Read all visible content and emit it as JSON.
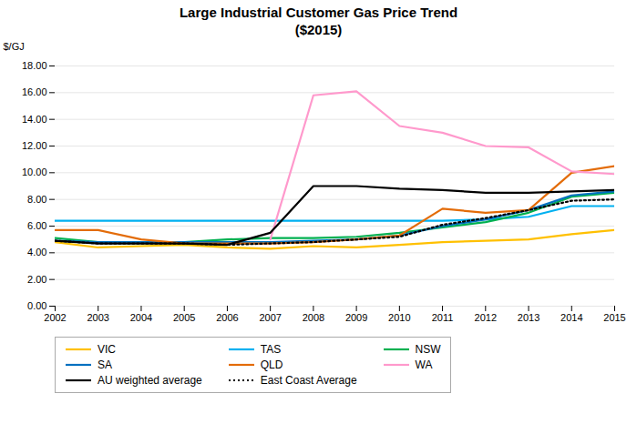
{
  "chart_data": {
    "type": "line",
    "title": "Large Industrial Customer Gas Price Trend\n($2015)",
    "ylabel": "$/GJ",
    "x": [
      2002,
      2003,
      2004,
      2005,
      2006,
      2007,
      2008,
      2009,
      2010,
      2011,
      2012,
      2013,
      2014,
      2015
    ],
    "series": [
      {
        "name": "VIC",
        "color": "#FFC000",
        "line_style": "solid",
        "values": [
          4.8,
          4.4,
          4.5,
          4.6,
          4.4,
          4.3,
          4.5,
          4.4,
          4.6,
          4.8,
          4.9,
          5.0,
          5.4,
          5.7
        ]
      },
      {
        "name": "TAS",
        "color": "#00B0F0",
        "line_style": "solid",
        "values": [
          6.4,
          6.4,
          6.4,
          6.4,
          6.4,
          6.4,
          6.4,
          6.4,
          6.4,
          6.4,
          6.5,
          6.7,
          7.5,
          7.5
        ]
      },
      {
        "name": "NSW",
        "color": "#00B050",
        "line_style": "solid",
        "values": [
          5.1,
          4.8,
          4.8,
          4.8,
          5.0,
          5.1,
          5.1,
          5.2,
          5.5,
          5.9,
          6.3,
          7.0,
          8.2,
          8.5
        ]
      },
      {
        "name": "SA",
        "color": "#0070C0",
        "line_style": "solid",
        "values": [
          4.9,
          4.8,
          4.8,
          4.8,
          4.8,
          4.8,
          4.9,
          5.0,
          5.3,
          6.0,
          6.5,
          7.2,
          8.3,
          8.6
        ]
      },
      {
        "name": "QLD",
        "color": "#E36C09",
        "line_style": "solid",
        "values": [
          5.7,
          5.7,
          5.0,
          4.7,
          4.7,
          4.7,
          4.8,
          5.0,
          5.3,
          7.3,
          7.0,
          7.2,
          10.0,
          10.5
        ]
      },
      {
        "name": "WA",
        "color": "#FF99CC",
        "line_style": "solid",
        "values": [
          null,
          null,
          null,
          null,
          null,
          5.0,
          15.8,
          16.1,
          13.5,
          13.0,
          12.0,
          11.9,
          10.1,
          9.9
        ]
      },
      {
        "name": "AU weighted average",
        "color": "#000000",
        "line_style": "solid",
        "values": [
          4.9,
          4.7,
          4.7,
          4.7,
          4.6,
          5.5,
          9.0,
          9.0,
          8.8,
          8.7,
          8.5,
          8.5,
          8.6,
          8.7
        ]
      },
      {
        "name": "East Coast Average",
        "color": "#000000",
        "line_style": "dotted",
        "values": [
          4.9,
          4.7,
          4.7,
          4.7,
          4.6,
          4.7,
          4.8,
          5.0,
          5.2,
          6.1,
          6.6,
          7.2,
          7.9,
          8.0
        ]
      }
    ],
    "xlim": [
      2002,
      2015
    ],
    "xticks": [
      2002,
      2003,
      2004,
      2005,
      2006,
      2007,
      2008,
      2009,
      2010,
      2011,
      2012,
      2013,
      2014,
      2015
    ],
    "ylim": [
      0,
      18
    ],
    "yticks": [
      {
        "value": 0,
        "label": "0.00"
      },
      {
        "value": 2,
        "label": "2.00"
      },
      {
        "value": 4,
        "label": "4.00"
      },
      {
        "value": 6,
        "label": "6.00"
      },
      {
        "value": 8,
        "label": "8.00"
      },
      {
        "value": 10,
        "label": "10.00"
      },
      {
        "value": 12,
        "label": "12.00"
      },
      {
        "value": 14,
        "label": "14.00"
      },
      {
        "value": 16,
        "label": "16.00"
      },
      {
        "value": 18,
        "label": "18.00"
      }
    ],
    "grid": "y",
    "legend": "bottom"
  }
}
